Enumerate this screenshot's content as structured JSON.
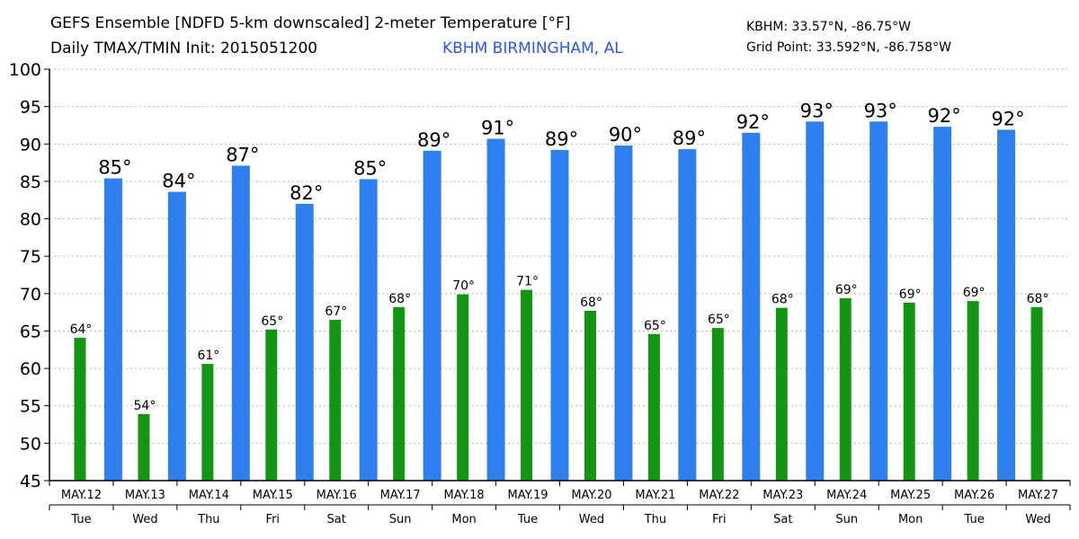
{
  "header": {
    "title_line1": "GEFS Ensemble [NDFD 5-km downscaled] 2-meter Temperature [°F]",
    "title_line2": "Daily TMAX/TMIN Init: 2015051200",
    "station": "KBHM BIRMINGHAM, AL",
    "coords_line1": "KBHM: 33.57°N, -86.75°W",
    "coords_line2": "Grid Point: 33.592°N, -86.758°W"
  },
  "colors": {
    "tmax": "#2f7fef",
    "tmin": "#149614",
    "station": "#2f55ee",
    "grid": "#b4b4b4"
  },
  "chart_data": {
    "type": "bar",
    "title": "GEFS Ensemble [NDFD 5-km downscaled] 2-meter Temperature [°F]",
    "ylim": [
      45,
      100
    ],
    "yticks": [
      45,
      50,
      55,
      60,
      65,
      70,
      75,
      80,
      85,
      90,
      95,
      100
    ],
    "grid": true,
    "categories": [
      "MAY.12",
      "MAY.13",
      "MAY.14",
      "MAY.15",
      "MAY.16",
      "MAY.17",
      "MAY.18",
      "MAY.19",
      "MAY.20",
      "MAY.21",
      "MAY.22",
      "MAY.23",
      "MAY.24",
      "MAY.25",
      "MAY.26",
      "MAY.27"
    ],
    "days": [
      "Tue",
      "Wed",
      "Thu",
      "Fri",
      "Sat",
      "Sun",
      "Mon",
      "Tue",
      "Wed",
      "Thu",
      "Fri",
      "Sat",
      "Sun",
      "Mon",
      "Tue",
      "Wed"
    ],
    "tmin": {
      "values": [
        64.1,
        53.9,
        60.6,
        65.2,
        66.5,
        68.2,
        69.9,
        70.5,
        67.7,
        64.6,
        65.4,
        68.1,
        69.4,
        68.8,
        69.0,
        68.2
      ],
      "labels": [
        "64°",
        "54°",
        "61°",
        "65°",
        "67°",
        "68°",
        "70°",
        "71°",
        "68°",
        "65°",
        "65°",
        "68°",
        "69°",
        "69°",
        "69°",
        "68°"
      ]
    },
    "tmax": {
      "values": [
        85.4,
        83.6,
        87.1,
        82.0,
        85.3,
        89.1,
        90.7,
        89.2,
        89.8,
        89.3,
        91.5,
        93.0,
        93.0,
        92.3,
        91.9
      ],
      "labels": [
        "85°",
        "84°",
        "87°",
        "82°",
        "85°",
        "89°",
        "91°",
        "89°",
        "90°",
        "89°",
        "92°",
        "93°",
        "93°",
        "92°",
        "92°"
      ]
    }
  }
}
